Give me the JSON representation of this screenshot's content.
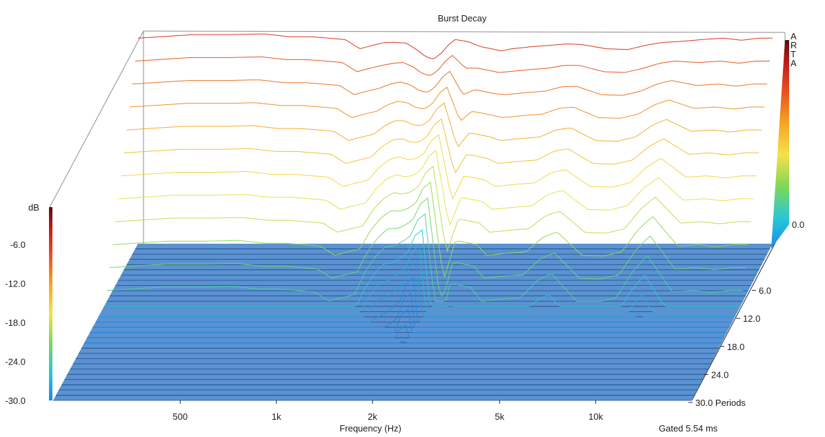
{
  "title": "Burst Decay",
  "watermark": "ARTA",
  "gated_label": "Gated 5.54 ms",
  "colors": {
    "floor": "#5a92d2",
    "floor_lines": "#24477a",
    "box_lines": "#8c8c8c",
    "colorbar": [
      "#1e88e5",
      "#26c6da",
      "#7ed957",
      "#f5e14a",
      "#f5a623",
      "#e8521f",
      "#c81d1d",
      "#5e0b0b"
    ]
  },
  "chart_data": {
    "type": "waterfall",
    "title": "Burst Decay",
    "xlabel": "Frequency (Hz)",
    "x_scale": "log",
    "x_range_hz": [
      200,
      20000
    ],
    "x_ticks": [
      {
        "value": 500,
        "label": "500"
      },
      {
        "value": 1000,
        "label": "1k"
      },
      {
        "value": 2000,
        "label": "2k"
      },
      {
        "value": 5000,
        "label": "5k"
      },
      {
        "value": 10000,
        "label": "10k"
      }
    ],
    "zlabel": "dB",
    "z_range_db": [
      -30,
      0
    ],
    "z_ticks": [
      {
        "value": 0,
        "label": "0.0"
      },
      {
        "value": -6,
        "label": "-6.0"
      },
      {
        "value": -12,
        "label": "-12.0"
      },
      {
        "value": -18,
        "label": "-18.0"
      },
      {
        "value": -24,
        "label": "-24.0"
      },
      {
        "value": -30,
        "label": "-30.0"
      }
    ],
    "depth_unit": "Periods",
    "depth_range": [
      0,
      30
    ],
    "depth_ticks": [
      {
        "value": 6,
        "label": "6.0"
      },
      {
        "value": 12,
        "label": "12.0"
      },
      {
        "value": 18,
        "label": "18.0"
      },
      {
        "value": 24,
        "label": "24.0"
      },
      {
        "value": 30,
        "label": "30.0 Periods"
      }
    ],
    "slices": 30,
    "response_db": {
      "freq_hz": [
        200,
        300,
        400,
        500,
        600,
        700,
        800,
        900,
        1000,
        1100,
        1200,
        1300,
        1400,
        1500,
        1600,
        1700,
        1800,
        1900,
        2000,
        2200,
        2400,
        2600,
        2800,
        3000,
        3500,
        4000,
        4500,
        5000,
        6000,
        7000,
        8000,
        9000,
        10000,
        12000,
        14000,
        16000,
        18000,
        20000
      ],
      "level_db": [
        -1,
        -0.5,
        -0.5,
        -0.4,
        -0.8,
        -0.8,
        -1,
        -1.2,
        -2.5,
        -2,
        -1.6,
        -1.6,
        -1.7,
        -2.5,
        -3.5,
        -4,
        -3.2,
        -2,
        -1.2,
        -1.5,
        -2.2,
        -2.5,
        -2.8,
        -2.5,
        -2.2,
        -2,
        -1.8,
        -1.9,
        -2.5,
        -2.6,
        -2,
        -1.6,
        -1.5,
        -1.2,
        -1,
        -1.3,
        -1,
        -1
      ]
    },
    "decay_db_per_period": {
      "freq_hz": [
        200,
        300,
        400,
        500,
        600,
        700,
        800,
        900,
        1000,
        1100,
        1200,
        1300,
        1400,
        1500,
        1600,
        1700,
        1800,
        1900,
        2000,
        2200,
        2400,
        2600,
        2800,
        3000,
        3500,
        4000,
        4500,
        5000,
        6000,
        7000,
        8000,
        9000,
        10000,
        12000,
        14000,
        16000,
        18000,
        20000
      ],
      "value": [
        2.5,
        2.5,
        2.5,
        2.5,
        2.5,
        2.5,
        2.5,
        2.5,
        2.5,
        2.5,
        2.5,
        2.2,
        2.0,
        1.8,
        1.7,
        1.6,
        1.6,
        1.5,
        1.5,
        3.0,
        2.3,
        2.3,
        2.3,
        2.5,
        2.5,
        2.5,
        2.3,
        2.2,
        2.5,
        2.5,
        2.5,
        2.2,
        2.0,
        2.5,
        2.5,
        2.5,
        2.5,
        2.5
      ]
    }
  }
}
